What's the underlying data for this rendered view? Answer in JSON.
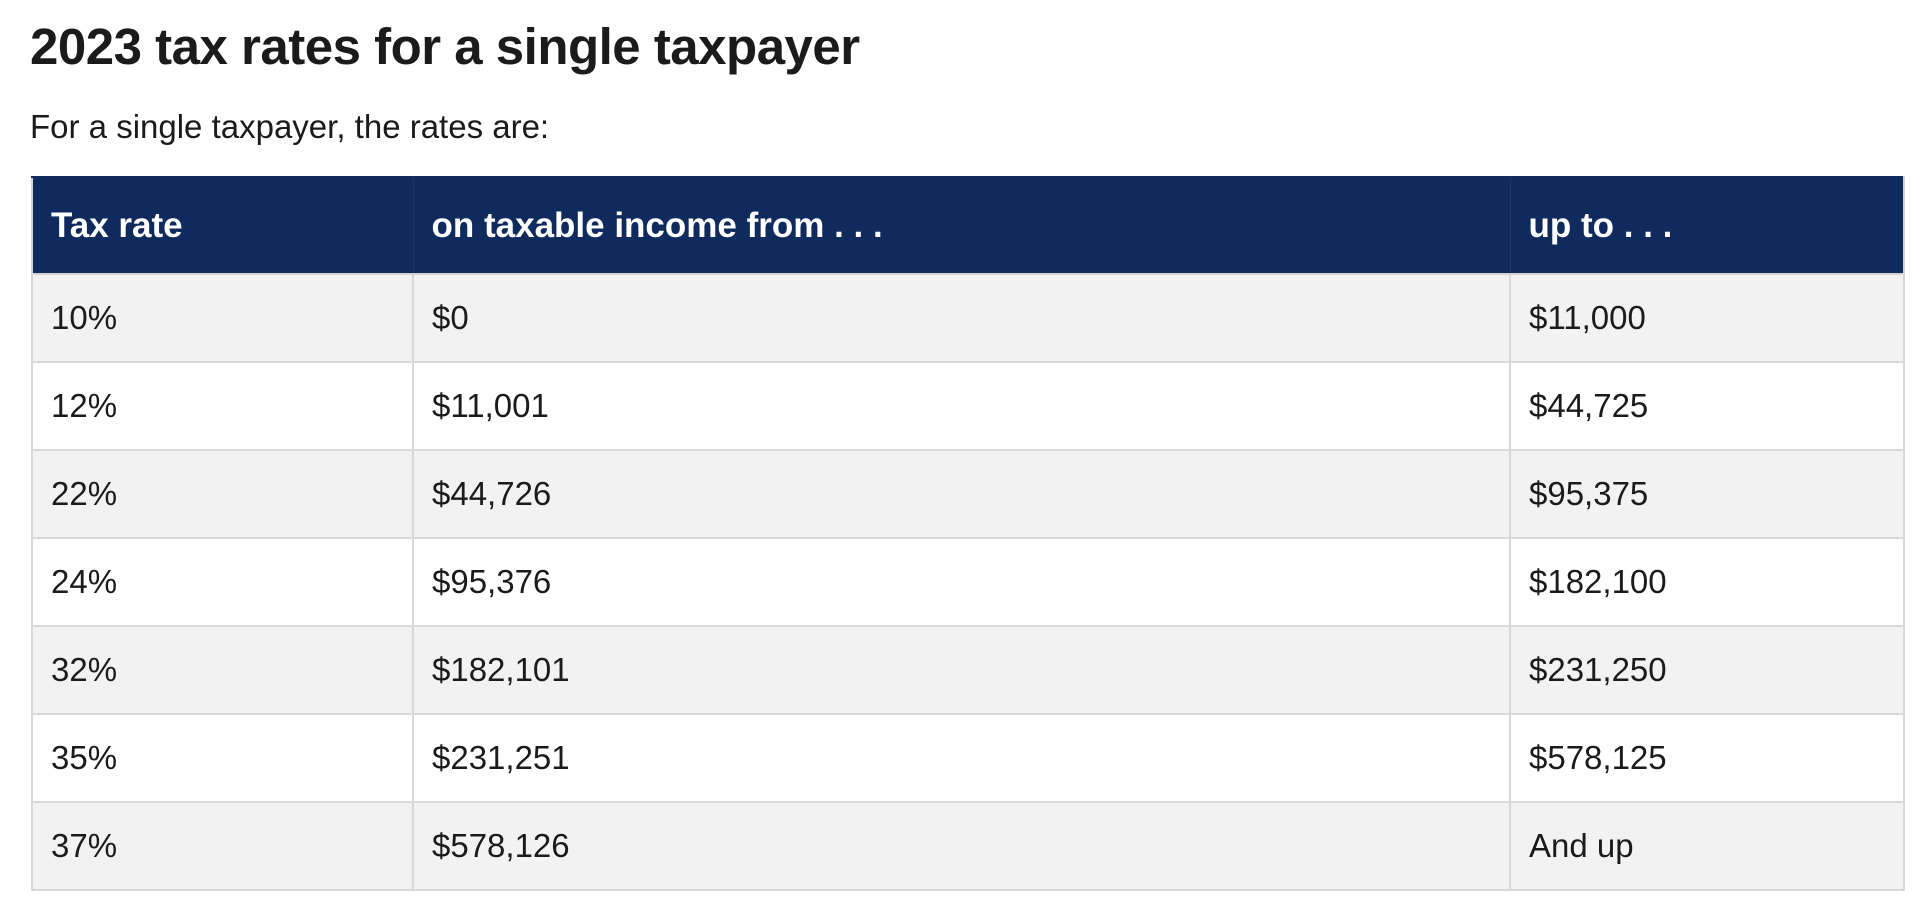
{
  "heading": "2023 tax rates for a single taxpayer",
  "intro": "For a single taxpayer, the rates are:",
  "table": {
    "headers": [
      "Tax rate",
      "on taxable income from . . .",
      "up to . . ."
    ],
    "rows": [
      [
        "10%",
        "$0",
        "$11,000"
      ],
      [
        "12%",
        "$11,001",
        "$44,725"
      ],
      [
        "22%",
        "$44,726",
        "$95,375"
      ],
      [
        "24%",
        "$95,376",
        "$182,100"
      ],
      [
        "32%",
        "$182,101",
        "$231,250"
      ],
      [
        "35%",
        "$231,251",
        "$578,125"
      ],
      [
        "37%",
        "$578,126",
        "And up"
      ]
    ]
  },
  "colors": {
    "header_background": "#0f2a5c",
    "header_text": "#ffffff",
    "row_stripe": "#f2f2f2",
    "border": "#d8d8d8",
    "text": "#1b1b1b"
  }
}
